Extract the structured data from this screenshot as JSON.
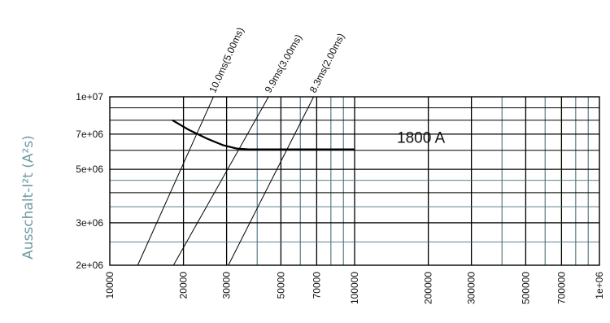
{
  "chart_data": {
    "type": "line",
    "title": "",
    "xlabel": "",
    "ylabel": "Ausschalt-I²t (A²s)",
    "x_scale": "log",
    "y_scale": "log",
    "xlim": [
      10000,
      1000000
    ],
    "ylim": [
      2000000,
      10000000
    ],
    "x_ticks": [
      10000,
      20000,
      30000,
      50000,
      70000,
      100000,
      200000,
      300000,
      500000,
      700000,
      1000000
    ],
    "x_tick_labels": [
      "10000",
      "20000",
      "30000",
      "50000",
      "70000",
      "100000",
      "200000",
      "300000",
      "500000",
      "700000",
      "1e+06"
    ],
    "y_ticks": [
      2000000,
      3000000,
      5000000,
      7000000,
      10000000
    ],
    "y_tick_labels": [
      "2e+06",
      "3e+06",
      "5e+06",
      "7e+06",
      "1e+07"
    ],
    "grid": true,
    "series": [
      {
        "name": "1800 A",
        "x": [
          18000,
          21000,
          25000,
          29000,
          33000,
          37000,
          45000,
          60000,
          80000,
          100000
        ],
        "y": [
          8000000,
          7300000,
          6700000,
          6300000,
          6100000,
          6050000,
          6050000,
          6050000,
          6050000,
          6050000
        ]
      }
    ],
    "reference_lines": [
      {
        "label": "10.0ms(5.00ms)",
        "x": [
          13000,
          26500
        ],
        "y": [
          2000000,
          10000000
        ]
      },
      {
        "label": "9.9ms(3.00ms)",
        "x": [
          18200,
          44500
        ],
        "y": [
          2000000,
          10000000
        ]
      },
      {
        "label": "8.3ms(2.00ms)",
        "x": [
          30500,
          68000
        ],
        "y": [
          2000000,
          10000000
        ]
      }
    ],
    "colors": {
      "grid_major": "#000000",
      "grid_minor": "#4a6f78",
      "curve": "#000000",
      "ylabel": "#6f9aa3"
    }
  }
}
